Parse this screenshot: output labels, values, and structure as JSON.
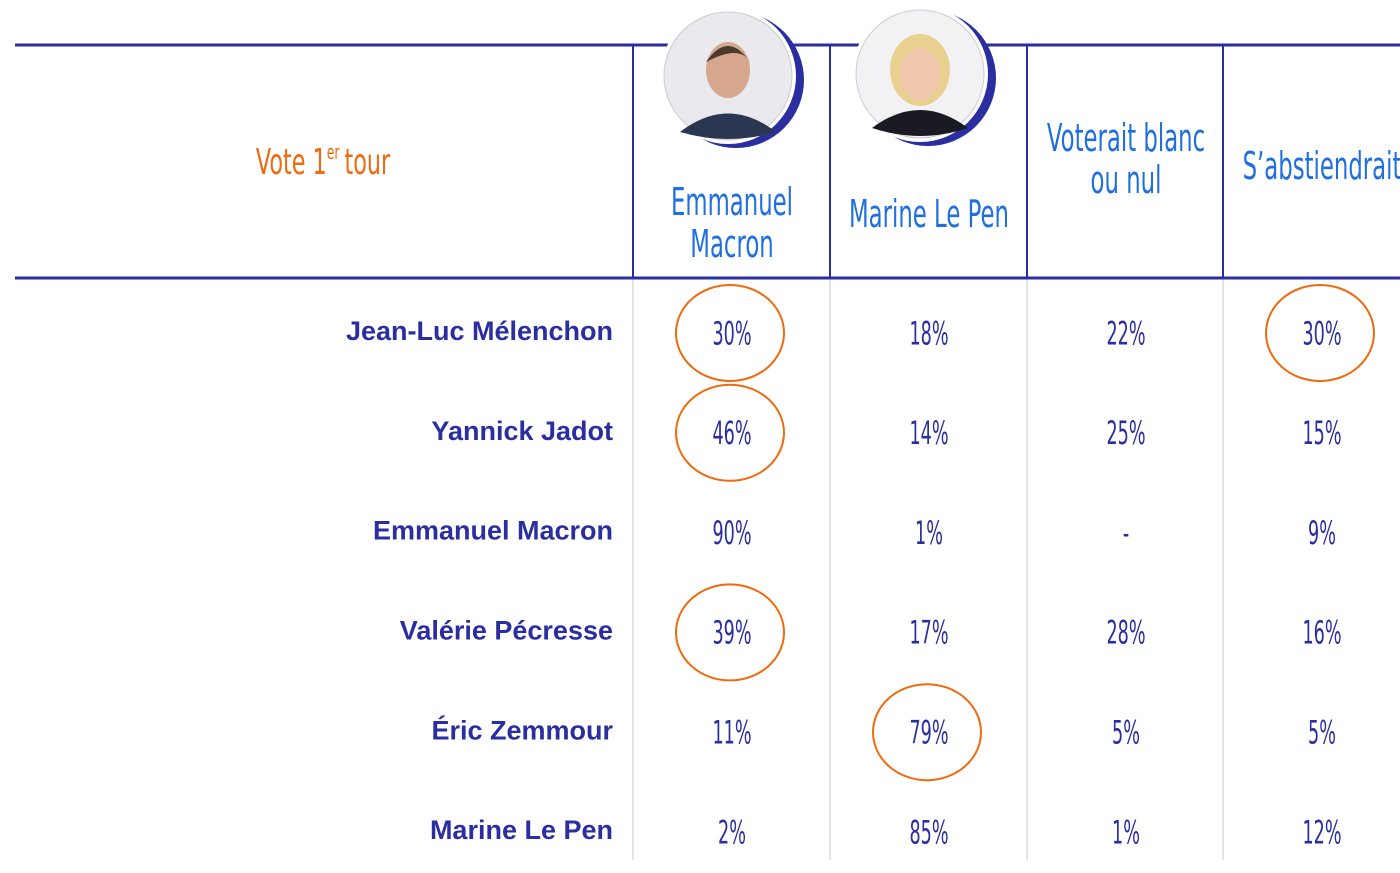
{
  "header": {
    "title_parts": [
      "Vote 1",
      "er",
      "tour"
    ]
  },
  "columns": [
    {
      "lines": [
        "Emmanuel",
        "Macron"
      ]
    },
    {
      "lines": [
        "Marine Le Pen"
      ]
    },
    {
      "lines": [
        "Voterait blanc",
        "ou nul"
      ]
    },
    {
      "lines": [
        "S’abstiendrait"
      ]
    }
  ],
  "table": {
    "rows": [
      {
        "name": "Jean-Luc Mélenchon",
        "cells": [
          "30%",
          "18%",
          "22%",
          "30%"
        ],
        "circled": [
          0,
          3
        ]
      },
      {
        "name": "Yannick Jadot",
        "cells": [
          "46%",
          "14%",
          "25%",
          "15%"
        ],
        "circled": [
          0
        ]
      },
      {
        "name": "Emmanuel Macron",
        "cells": [
          "90%",
          "1%",
          "-",
          "9%"
        ],
        "circled": []
      },
      {
        "name": "Valérie Pécresse",
        "cells": [
          "39%",
          "17%",
          "28%",
          "16%"
        ],
        "circled": [
          0
        ]
      },
      {
        "name": "Éric Zemmour",
        "cells": [
          "11%",
          "79%",
          "5%",
          "5%"
        ],
        "circled": [
          1
        ]
      },
      {
        "name": "Marine Le Pen",
        "cells": [
          "2%",
          "85%",
          "1%",
          "12%"
        ],
        "circled": []
      }
    ]
  }
}
